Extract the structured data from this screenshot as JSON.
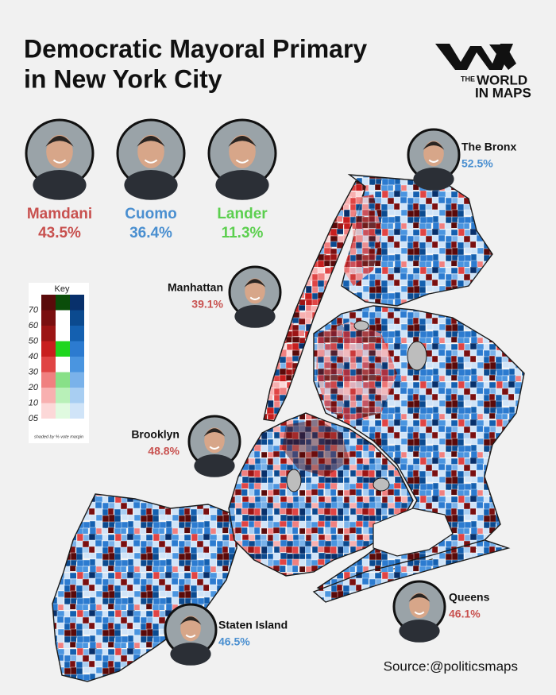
{
  "header": {
    "title_lines": [
      "Democratic Mayoral Primary",
      "in New York City"
    ]
  },
  "logo": {
    "lines": [
      "THE",
      "WORLD",
      "IN MAPS"
    ]
  },
  "candidates": [
    {
      "name": "Mamdani",
      "share": "43.5%",
      "color": "#c8514f"
    },
    {
      "name": "Cuomo",
      "share": "36.4%",
      "color": "#4a8fd0"
    },
    {
      "name": "Lander",
      "share": "11.3%",
      "color": "#5ccf4f"
    }
  ],
  "boroughs": [
    {
      "name": "The Bronx",
      "winner_share": "52.5%",
      "color": "#4a8fd0"
    },
    {
      "name": "Manhattan",
      "winner_share": "39.1%",
      "color": "#c8514f"
    },
    {
      "name": "Brooklyn",
      "winner_share": "48.8%",
      "color": "#c8514f"
    },
    {
      "name": "Queens",
      "winner_share": "46.1%",
      "color": "#c8514f"
    },
    {
      "name": "Staten Island",
      "winner_share": "46.5%",
      "color": "#4a8fd0"
    }
  ],
  "key": {
    "title": "Key",
    "levels": [
      "70",
      "60",
      "50",
      "40",
      "30",
      "20",
      "10",
      "05"
    ],
    "note": "shaded by % vote margin"
  },
  "source": "Source:@politicsmaps"
}
